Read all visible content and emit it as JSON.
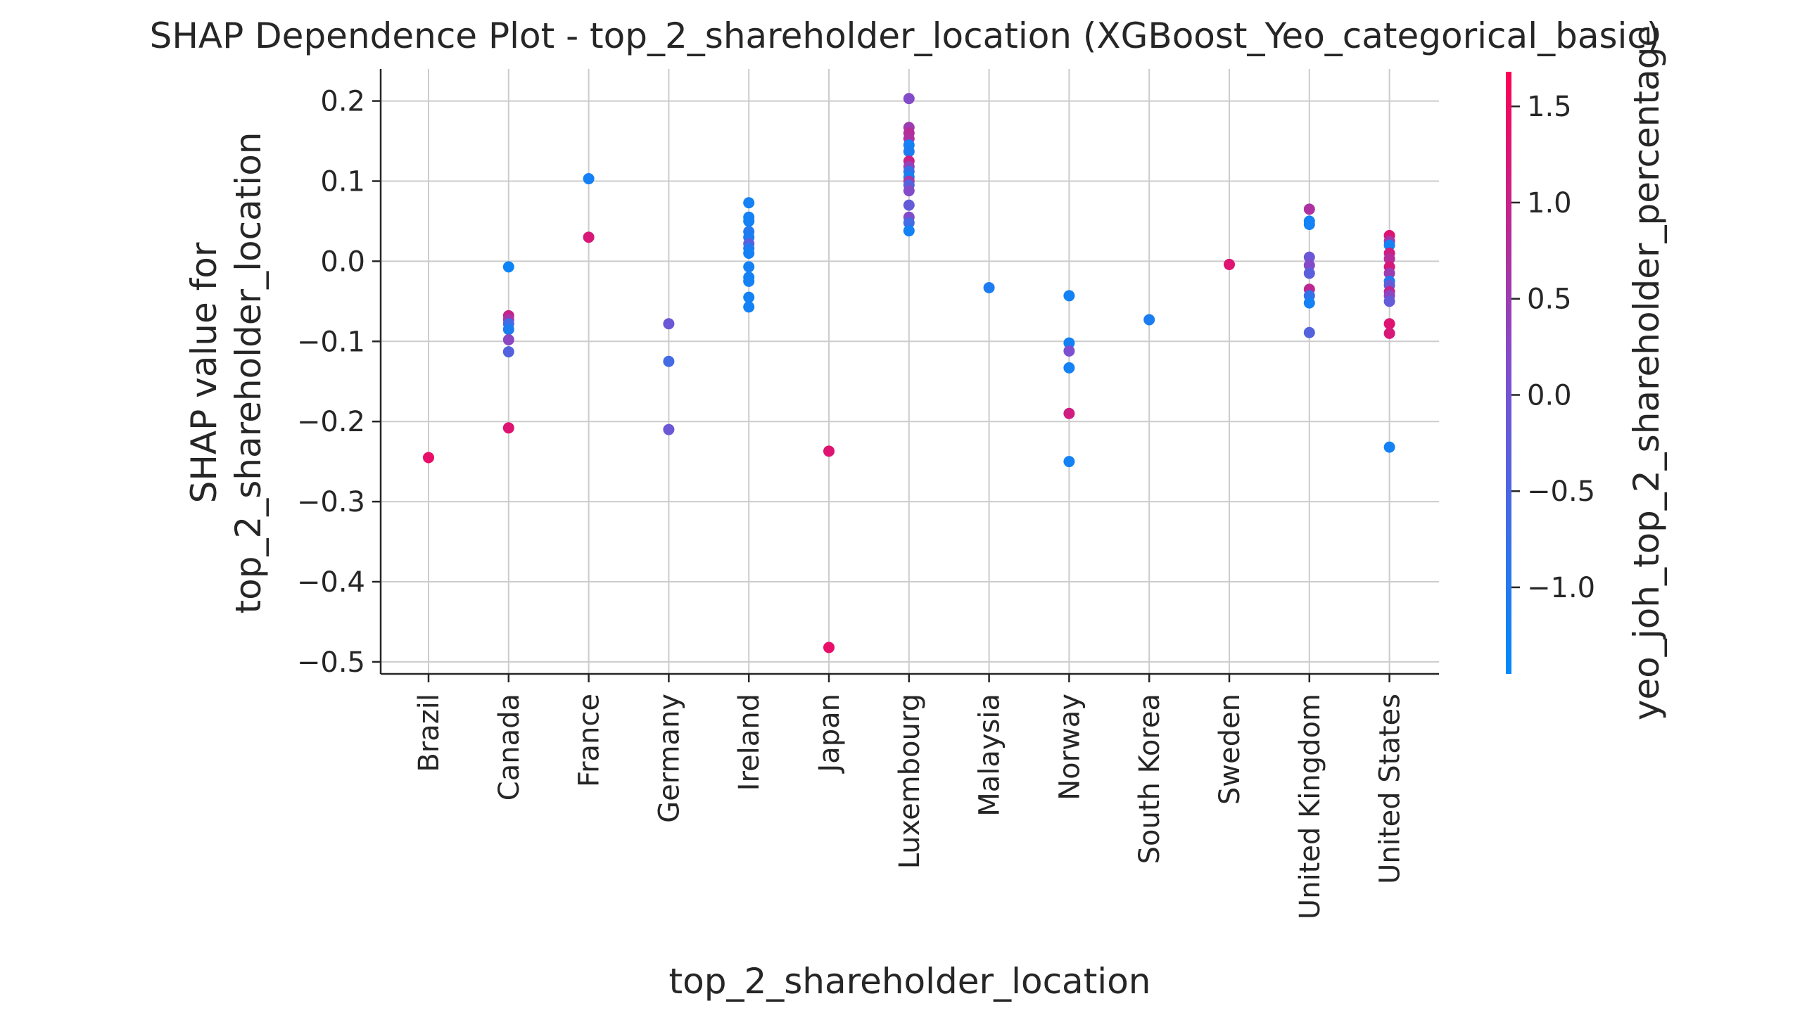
{
  "chart_data": {
    "type": "scatter",
    "title": "SHAP Dependence Plot - top_2_shareholder_location (XGBoost_Yeo_categorical_basic)",
    "xlabel": "top_2_shareholder_location",
    "ylabel_line1": "SHAP value for",
    "ylabel_line2": "top_2_shareholder_location",
    "colorbar_label": "yeo_joh_top_2_shareholder_percentage",
    "categories": [
      "Brazil",
      "Canada",
      "France",
      "Germany",
      "Ireland",
      "Japan",
      "Luxembourg",
      "Malaysia",
      "Norway",
      "South Korea",
      "Sweden",
      "United Kingdom",
      "United States"
    ],
    "ylim": [
      -0.515,
      0.24
    ],
    "yticks": [
      0.2,
      0.1,
      0.0,
      -0.1,
      -0.2,
      -0.3,
      -0.4,
      -0.5
    ],
    "ytick_labels": [
      "0.2",
      "0.1",
      "0.0",
      "−0.1",
      "−0.2",
      "−0.3",
      "−0.4",
      "−0.5"
    ],
    "color_range": [
      -1.45,
      1.68
    ],
    "color_ticks": [
      1.5,
      1.0,
      0.5,
      0.0,
      -0.5,
      -1.0
    ],
    "color_tick_labels": [
      "1.5",
      "1.0",
      "0.5",
      "0.0",
      "−0.5",
      "−1.0"
    ],
    "colors": {
      "low": "#008afb",
      "mid": "#7d4fd0",
      "high": "#ff0052"
    },
    "grid": true,
    "points": [
      {
        "cat": 0,
        "y": -0.245,
        "c": 1.4
      },
      {
        "cat": 1,
        "y": -0.007,
        "c": -1.3
      },
      {
        "cat": 1,
        "y": -0.068,
        "c": 1.0
      },
      {
        "cat": 1,
        "y": -0.073,
        "c": 0.6
      },
      {
        "cat": 1,
        "y": -0.078,
        "c": -0.6
      },
      {
        "cat": 1,
        "y": -0.085,
        "c": -1.1
      },
      {
        "cat": 1,
        "y": -0.098,
        "c": 0.3
      },
      {
        "cat": 1,
        "y": -0.113,
        "c": -0.4
      },
      {
        "cat": 1,
        "y": -0.208,
        "c": 1.3
      },
      {
        "cat": 2,
        "y": 0.103,
        "c": -1.2
      },
      {
        "cat": 2,
        "y": 0.03,
        "c": 1.2
      },
      {
        "cat": 3,
        "y": -0.078,
        "c": -0.1
      },
      {
        "cat": 3,
        "y": -0.125,
        "c": -0.6
      },
      {
        "cat": 3,
        "y": -0.21,
        "c": -0.1
      },
      {
        "cat": 4,
        "y": 0.073,
        "c": -1.2
      },
      {
        "cat": 4,
        "y": 0.055,
        "c": -1.2
      },
      {
        "cat": 4,
        "y": 0.05,
        "c": -1.2
      },
      {
        "cat": 4,
        "y": 0.037,
        "c": -1.0
      },
      {
        "cat": 4,
        "y": 0.03,
        "c": -1.1
      },
      {
        "cat": 4,
        "y": 0.022,
        "c": -0.3
      },
      {
        "cat": 4,
        "y": 0.016,
        "c": -1.0
      },
      {
        "cat": 4,
        "y": 0.01,
        "c": -1.2
      },
      {
        "cat": 4,
        "y": -0.007,
        "c": -1.2
      },
      {
        "cat": 4,
        "y": -0.02,
        "c": -1.2
      },
      {
        "cat": 4,
        "y": -0.025,
        "c": -1.2
      },
      {
        "cat": 4,
        "y": -0.045,
        "c": -1.2
      },
      {
        "cat": 4,
        "y": -0.057,
        "c": -1.2
      },
      {
        "cat": 5,
        "y": -0.237,
        "c": 1.3
      },
      {
        "cat": 5,
        "y": -0.482,
        "c": 1.4
      },
      {
        "cat": 6,
        "y": 0.203,
        "c": 0.2
      },
      {
        "cat": 6,
        "y": 0.167,
        "c": 0.5
      },
      {
        "cat": 6,
        "y": 0.16,
        "c": 0.8
      },
      {
        "cat": 6,
        "y": 0.153,
        "c": 0.7
      },
      {
        "cat": 6,
        "y": 0.145,
        "c": -1.2
      },
      {
        "cat": 6,
        "y": 0.137,
        "c": -1.1
      },
      {
        "cat": 6,
        "y": 0.125,
        "c": 1.0
      },
      {
        "cat": 6,
        "y": 0.118,
        "c": 0.4
      },
      {
        "cat": 6,
        "y": 0.112,
        "c": -0.8
      },
      {
        "cat": 6,
        "y": 0.105,
        "c": -1.2
      },
      {
        "cat": 6,
        "y": 0.1,
        "c": 0.6
      },
      {
        "cat": 6,
        "y": 0.095,
        "c": -0.4
      },
      {
        "cat": 6,
        "y": 0.088,
        "c": 0.2
      },
      {
        "cat": 6,
        "y": 0.07,
        "c": -0.2
      },
      {
        "cat": 6,
        "y": 0.055,
        "c": 0.2
      },
      {
        "cat": 6,
        "y": 0.048,
        "c": -0.6
      },
      {
        "cat": 6,
        "y": 0.038,
        "c": -1.2
      },
      {
        "cat": 7,
        "y": -0.033,
        "c": -1.1
      },
      {
        "cat": 8,
        "y": -0.043,
        "c": -1.2
      },
      {
        "cat": 8,
        "y": -0.102,
        "c": -1.2
      },
      {
        "cat": 8,
        "y": -0.112,
        "c": 0.1
      },
      {
        "cat": 8,
        "y": -0.133,
        "c": -1.2
      },
      {
        "cat": 8,
        "y": -0.19,
        "c": 1.1
      },
      {
        "cat": 8,
        "y": -0.25,
        "c": -1.2
      },
      {
        "cat": 9,
        "y": -0.073,
        "c": -1.1
      },
      {
        "cat": 10,
        "y": -0.004,
        "c": 1.3
      },
      {
        "cat": 11,
        "y": 0.065,
        "c": 0.7
      },
      {
        "cat": 11,
        "y": 0.05,
        "c": -1.2
      },
      {
        "cat": 11,
        "y": 0.046,
        "c": -1.2
      },
      {
        "cat": 11,
        "y": 0.005,
        "c": -0.1
      },
      {
        "cat": 11,
        "y": -0.005,
        "c": 0.2
      },
      {
        "cat": 11,
        "y": -0.015,
        "c": -0.3
      },
      {
        "cat": 11,
        "y": -0.035,
        "c": 0.9
      },
      {
        "cat": 11,
        "y": -0.043,
        "c": -0.8
      },
      {
        "cat": 11,
        "y": -0.052,
        "c": -1.2
      },
      {
        "cat": 11,
        "y": -0.089,
        "c": -0.4
      },
      {
        "cat": 12,
        "y": 0.032,
        "c": 1.3
      },
      {
        "cat": 12,
        "y": 0.025,
        "c": 0.6
      },
      {
        "cat": 12,
        "y": 0.02,
        "c": -1.2
      },
      {
        "cat": 12,
        "y": 0.01,
        "c": 1.1
      },
      {
        "cat": 12,
        "y": 0.003,
        "c": 0.8
      },
      {
        "cat": 12,
        "y": -0.007,
        "c": 1.2
      },
      {
        "cat": 12,
        "y": -0.015,
        "c": 0.5
      },
      {
        "cat": 12,
        "y": -0.025,
        "c": -1.0
      },
      {
        "cat": 12,
        "y": -0.03,
        "c": -0.2
      },
      {
        "cat": 12,
        "y": -0.038,
        "c": 0.9
      },
      {
        "cat": 12,
        "y": -0.043,
        "c": 0.3
      },
      {
        "cat": 12,
        "y": -0.05,
        "c": -0.2
      },
      {
        "cat": 12,
        "y": -0.078,
        "c": 1.3
      },
      {
        "cat": 12,
        "y": -0.09,
        "c": 1.2
      },
      {
        "cat": 12,
        "y": -0.232,
        "c": -1.2
      }
    ]
  }
}
